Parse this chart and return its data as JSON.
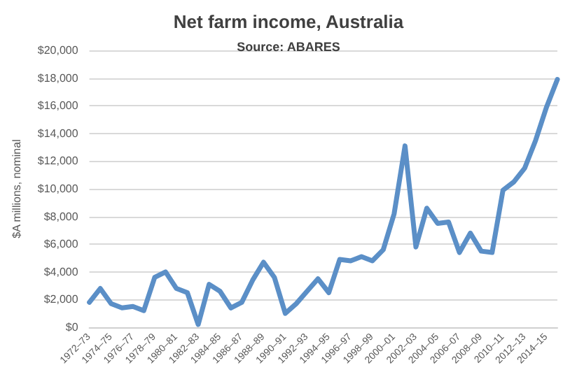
{
  "chart_data": {
    "type": "line",
    "title": "Net farm income, Australia",
    "subtitle": "Source: ABARES",
    "ylabel": "$A millions, nominal",
    "categories": [
      "1972–73",
      null,
      "1974–75",
      null,
      "1976–77",
      null,
      "1978–79",
      null,
      "1980–81",
      null,
      "1982–83",
      null,
      "1984–85",
      null,
      "1986–87",
      null,
      "1988–89",
      null,
      "1990–91",
      null,
      "1992–93",
      null,
      "1994–95",
      null,
      "1996–97",
      null,
      "1998–99",
      null,
      "2000–01",
      null,
      "2002–03",
      null,
      "2004–05",
      null,
      "2006–07",
      null,
      "2008–09",
      null,
      "2010–11",
      null,
      "2012–13",
      null,
      "2014–15",
      null
    ],
    "series": [
      {
        "color": "#5b8fc7",
        "values": [
          1800,
          2800,
          1700,
          1400,
          1500,
          1200,
          3600,
          4000,
          2800,
          2500,
          200,
          3100,
          2600,
          1400,
          1800,
          3400,
          4700,
          3600,
          1000,
          1700,
          2600,
          3500,
          2500,
          4900,
          4800,
          5100,
          4800,
          5600,
          8200,
          13100,
          5800,
          8600,
          7500,
          7600,
          5400,
          6800,
          5500,
          5400,
          9900,
          10500,
          11500,
          13500,
          15900,
          17900
        ]
      }
    ],
    "ylim": [
      0,
      20000
    ],
    "yticks": [
      {
        "value": 0,
        "label": "$0"
      },
      {
        "value": 2000,
        "label": "$2,000"
      },
      {
        "value": 4000,
        "label": "$4,000"
      },
      {
        "value": 6000,
        "label": "$6,000"
      },
      {
        "value": 8000,
        "label": "$8,000"
      },
      {
        "value": 10000,
        "label": "$10,000"
      },
      {
        "value": 12000,
        "label": "$12,000"
      },
      {
        "value": 14000,
        "label": "$14,000"
      },
      {
        "value": 16000,
        "label": "$16,000"
      },
      {
        "value": 18000,
        "label": "$18,000"
      },
      {
        "value": 20000,
        "label": "$20,000"
      }
    ],
    "grid": "y",
    "marker": "none",
    "line_style": "solid"
  }
}
